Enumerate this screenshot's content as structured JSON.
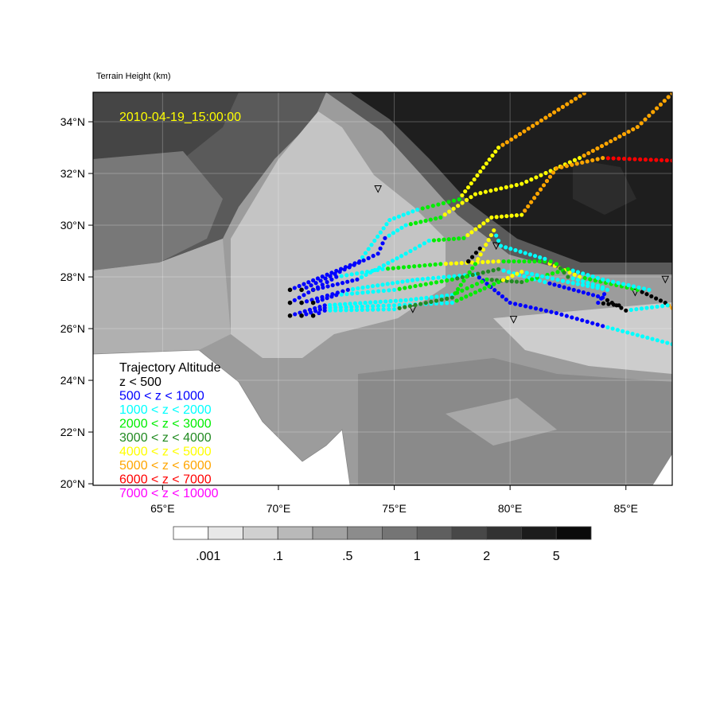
{
  "title": "Terrain Height   (km)",
  "timestamp": "2010-04-19_15:00:00",
  "timestamp_color": "#ffff00",
  "map": {
    "lon_range": [
      62,
      87
    ],
    "lat_range": [
      19.94,
      35.14
    ],
    "lat_ticks": [
      {
        "value": 34,
        "label": "34°N"
      },
      {
        "value": 32,
        "label": "32°N"
      },
      {
        "value": 30,
        "label": "30°N"
      },
      {
        "value": 28,
        "label": "28°N"
      },
      {
        "value": 26,
        "label": "26°N"
      },
      {
        "value": 24,
        "label": "24°N"
      },
      {
        "value": 22,
        "label": "22°N"
      },
      {
        "value": 20,
        "label": "20°N"
      }
    ],
    "lon_ticks": [
      {
        "value": 65,
        "label": "65°E"
      },
      {
        "value": 70,
        "label": "70°E"
      },
      {
        "value": 75,
        "label": "75°E"
      },
      {
        "value": 80,
        "label": "80°E"
      },
      {
        "value": 85,
        "label": "85°E"
      }
    ],
    "grid": true,
    "stations": [
      [
        74.3,
        31.4
      ],
      [
        79.4,
        29.2
      ],
      [
        75.8,
        26.75
      ],
      [
        80.15,
        26.35
      ],
      [
        85.4,
        27.4
      ],
      [
        86.7,
        27.9
      ]
    ]
  },
  "legend": {
    "title": "Trajectory Altitude",
    "placement": "bottom-left",
    "items": [
      {
        "label": "z < 500",
        "color": "#000000"
      },
      {
        "label": "500 < z < 1000",
        "color": "#0000ff"
      },
      {
        "label": "1000 < z < 2000",
        "color": "#00ffff"
      },
      {
        "label": "2000 < z < 3000",
        "color": "#00ee00"
      },
      {
        "label": "3000 < z < 4000",
        "color": "#228b22"
      },
      {
        "label": "4000 < z < 5000",
        "color": "#ffff00"
      },
      {
        "label": "5000 < z < 6000",
        "color": "#ffa500"
      },
      {
        "label": "6000 < z < 7000",
        "color": "#ff0000"
      },
      {
        "label": "7000 < z < 10000",
        "color": "#ff00ff"
      }
    ]
  },
  "colorbar": {
    "colors": [
      "#ffffff",
      "#e8e8e8",
      "#d0d0d0",
      "#b9b9b9",
      "#a2a2a2",
      "#8c8c8c",
      "#757575",
      "#5f5f5f",
      "#484848",
      "#323232",
      "#1c1c1c",
      "#0a0a0a"
    ],
    "labels": [
      ".001",
      ".1",
      ".5",
      "1",
      "2",
      "5"
    ]
  },
  "trajectories": [
    [
      [
        70.5,
        27.5,
        0
      ],
      [
        73.5,
        28.6,
        1
      ],
      [
        74.8,
        30.2,
        2
      ],
      [
        76.0,
        30.6,
        2
      ],
      [
        77.8,
        31.0,
        3
      ],
      [
        79.5,
        33.0,
        5
      ],
      [
        83.2,
        35.1,
        6
      ]
    ],
    [
      [
        71.0,
        27.5,
        0
      ],
      [
        74.3,
        28.9,
        1
      ],
      [
        74.6,
        29.5,
        1
      ],
      [
        75.5,
        30.0,
        2
      ],
      [
        77.0,
        30.3,
        3
      ],
      [
        78.5,
        31.2,
        5
      ],
      [
        80.5,
        31.6,
        5
      ],
      [
        83.0,
        32.6,
        5
      ],
      [
        85.5,
        33.8,
        6
      ],
      [
        87.0,
        35.1,
        6
      ]
    ],
    [
      [
        71.5,
        27.5,
        0
      ],
      [
        73.4,
        27.9,
        1
      ],
      [
        75.5,
        28.9,
        2
      ],
      [
        76.5,
        29.4,
        2
      ],
      [
        78.0,
        29.5,
        3
      ],
      [
        79.2,
        30.3,
        5
      ],
      [
        80.5,
        30.4,
        5
      ],
      [
        82.0,
        32.2,
        6
      ],
      [
        84.0,
        32.6,
        6
      ],
      [
        87.0,
        32.5,
        7
      ]
    ],
    [
      [
        70.5,
        27.0,
        0
      ],
      [
        72.5,
        28.0,
        1
      ],
      [
        74.5,
        28.3,
        2
      ],
      [
        77.0,
        28.5,
        3
      ],
      [
        79.5,
        28.6,
        5
      ],
      [
        81.5,
        28.6,
        3
      ],
      [
        83.0,
        28.0,
        5
      ],
      [
        85.5,
        27.5,
        3
      ],
      [
        86.7,
        27.0,
        0
      ],
      [
        87.0,
        26.8,
        6
      ]
    ],
    [
      [
        71.0,
        27.0,
        0
      ],
      [
        73.0,
        27.5,
        1
      ],
      [
        76.0,
        27.9,
        2
      ],
      [
        78.5,
        28.1,
        2
      ],
      [
        80.0,
        27.0,
        1
      ],
      [
        82.0,
        26.6,
        1
      ],
      [
        84.0,
        26.1,
        1
      ],
      [
        87.0,
        25.4,
        2
      ]
    ],
    [
      [
        71.5,
        27.0,
        0
      ],
      [
        72.5,
        27.3,
        1
      ],
      [
        75.0,
        27.5,
        2
      ],
      [
        77.5,
        27.9,
        3
      ],
      [
        79.5,
        28.3,
        4
      ],
      [
        81.5,
        27.8,
        2
      ],
      [
        84.0,
        27.2,
        1
      ],
      [
        85.0,
        26.7,
        0
      ],
      [
        86.8,
        26.9,
        2
      ]
    ],
    [
      [
        70.5,
        26.5,
        0
      ],
      [
        72.0,
        26.9,
        1
      ],
      [
        75.5,
        27.1,
        2
      ],
      [
        77.5,
        27.3,
        2
      ],
      [
        79.0,
        27.9,
        3
      ],
      [
        80.5,
        27.8,
        4
      ],
      [
        82.5,
        28.3,
        3
      ],
      [
        84.0,
        27.9,
        2
      ],
      [
        86.0,
        27.5,
        2
      ]
    ],
    [
      [
        71.0,
        26.5,
        0
      ],
      [
        72.0,
        26.8,
        1
      ],
      [
        75.0,
        26.9,
        2
      ],
      [
        77.5,
        27.0,
        2
      ],
      [
        79.5,
        27.8,
        3
      ],
      [
        80.5,
        28.2,
        5
      ],
      [
        82.5,
        27.8,
        2
      ],
      [
        84.2,
        27.5,
        2
      ],
      [
        83.8,
        27.0,
        1
      ],
      [
        84.7,
        26.9,
        0
      ]
    ],
    [
      [
        71.5,
        26.5,
        0
      ],
      [
        72.0,
        26.7,
        1
      ],
      [
        75.0,
        26.75,
        2
      ],
      [
        77.5,
        27.2,
        4
      ],
      [
        78.5,
        28.5,
        3
      ],
      [
        79.3,
        29.8,
        5
      ],
      [
        79.6,
        29.2,
        2
      ],
      [
        81.5,
        28.7,
        2
      ],
      [
        82.0,
        28.5,
        3
      ],
      [
        82.5,
        28.0,
        4
      ],
      [
        84.0,
        27.6,
        2
      ]
    ],
    [
      [
        78.2,
        28.6,
        0
      ],
      [
        78.7,
        29.1,
        0
      ]
    ]
  ]
}
